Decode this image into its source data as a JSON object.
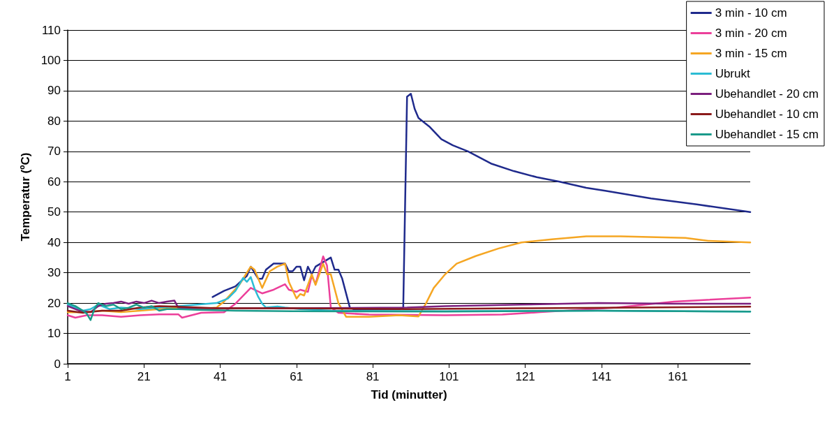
{
  "chart_data": {
    "type": "line",
    "xlabel": "Tid (minutter)",
    "ylabel": "Temperatur (ºC)",
    "xlim": [
      1,
      180
    ],
    "xticks": [
      1,
      21,
      41,
      61,
      81,
      101,
      121,
      141,
      161
    ],
    "ylim": [
      0,
      110
    ],
    "yticks": [
      0,
      10,
      20,
      30,
      40,
      50,
      60,
      70,
      80,
      90,
      100,
      110
    ],
    "grid": "y",
    "legend": "top right",
    "marker": "none",
    "line_style": "solid",
    "series": [
      {
        "name": "3 min - 10 cm",
        "color": "#1f2a8c",
        "x": [
          39,
          42,
          45,
          48,
          49,
          51,
          52,
          53,
          55,
          57,
          58,
          59,
          60,
          61,
          62,
          63,
          64,
          65,
          66,
          68,
          70,
          71,
          72,
          73,
          75,
          76,
          88,
          89,
          90,
          91,
          92,
          93,
          96,
          99,
          102,
          106,
          112,
          118,
          124,
          130,
          137,
          142,
          154,
          166,
          180
        ],
        "values": [
          22,
          24,
          25.5,
          29,
          32,
          28,
          28,
          31,
          33,
          33,
          33,
          30.5,
          30.5,
          32,
          32,
          27.5,
          32,
          29.5,
          32,
          33.5,
          35,
          31,
          31,
          28,
          18.5,
          18,
          18,
          18.5,
          88,
          89,
          84,
          81,
          78,
          74,
          72,
          70,
          66,
          63.5,
          61.5,
          60,
          58,
          57,
          54.5,
          52.5,
          50
        ]
      },
      {
        "name": "3 min - 20 cm",
        "color": "#ec3f9a",
        "x": [
          1,
          3,
          6,
          10,
          15,
          20,
          25,
          30,
          31,
          36,
          42,
          45,
          49,
          52,
          55,
          58,
          59,
          61,
          62,
          64,
          65,
          66,
          68,
          69,
          70,
          72,
          80,
          100,
          115,
          125,
          145,
          160,
          180
        ],
        "values": [
          16,
          15.2,
          16,
          16,
          15.5,
          16,
          16.3,
          16.3,
          15.2,
          16.8,
          17,
          19.8,
          25,
          23.2,
          24.4,
          26.2,
          24.4,
          23.7,
          24.4,
          23.7,
          29,
          26.3,
          35.4,
          32.4,
          18.6,
          16.8,
          16.2,
          16,
          16.2,
          17,
          18.5,
          20.5,
          21.8
        ]
      },
      {
        "name": "3 min - 15 cm",
        "color": "#f5a623",
        "x": [
          1,
          5,
          10,
          15,
          20,
          25,
          30,
          35,
          40,
          42,
          46,
          49,
          50,
          52,
          54,
          56,
          58,
          59,
          61,
          62,
          63,
          65,
          66,
          68,
          69,
          70,
          72,
          74,
          80,
          88,
          93,
          95,
          97,
          100,
          103,
          108,
          114,
          120,
          128,
          137,
          146,
          163,
          169,
          180
        ],
        "values": [
          17,
          17,
          17.5,
          17,
          17.5,
          18,
          18.5,
          18,
          18.5,
          20.5,
          26,
          32,
          31,
          25,
          30.5,
          32,
          33,
          27,
          21.5,
          23,
          22.5,
          29.5,
          26,
          33,
          29.5,
          29.5,
          20,
          15.5,
          15.5,
          16,
          15.6,
          20,
          25,
          29.5,
          33,
          35.5,
          38,
          40,
          41,
          42,
          42,
          41.5,
          40.5,
          40
        ]
      },
      {
        "name": "Ubrukt",
        "color": "#2bbcd4",
        "x": [
          1,
          3,
          5,
          7,
          9,
          12,
          15,
          20,
          25,
          30,
          35,
          40,
          43,
          45,
          47,
          48,
          49,
          50,
          51,
          52,
          53,
          56,
          58,
          62,
          70,
          100,
          140,
          180
        ],
        "values": [
          19.5,
          18.5,
          17.5,
          18,
          19.5,
          18,
          18.5,
          18,
          18.5,
          19,
          19.5,
          20,
          21.5,
          24,
          28.3,
          27,
          28.6,
          24.8,
          22,
          19.8,
          18.5,
          18.9,
          18.5,
          18,
          17.5,
          17.3,
          17.5,
          17.2
        ]
      },
      {
        "name": "Ubehandlet - 20 cm",
        "color": "#7b1f7e",
        "x": [
          1,
          4,
          7,
          9,
          11,
          13,
          15,
          17,
          19,
          21,
          23,
          25,
          27,
          29,
          30,
          33,
          40,
          60,
          90,
          100,
          120,
          140,
          160,
          180
        ],
        "values": [
          19,
          17.5,
          17,
          19,
          19.8,
          20,
          20.5,
          19.8,
          20.5,
          20,
          20.8,
          20,
          20.5,
          20.8,
          18.5,
          18.3,
          18.3,
          18.3,
          18.5,
          19,
          19.5,
          20,
          19.8,
          19.8
        ]
      },
      {
        "name": "Ubehandlet - 10 cm",
        "color": "#8b1a1a",
        "x": [
          1,
          5,
          10,
          15,
          20,
          25,
          30,
          40,
          60,
          90,
          120,
          150,
          180
        ],
        "values": [
          17.5,
          16.8,
          17.5,
          17.5,
          18.5,
          19,
          18.8,
          18.3,
          18.3,
          18,
          18.3,
          18.5,
          18.8
        ]
      },
      {
        "name": "Ubehandlet - 15 cm",
        "color": "#1a9a8a",
        "x": [
          1,
          3,
          5,
          6,
          7,
          8,
          9,
          11,
          13,
          15,
          17,
          19,
          21,
          23,
          25,
          27,
          30,
          35,
          45,
          60,
          100,
          140,
          180
        ],
        "values": [
          20,
          19,
          17.5,
          16.5,
          14.4,
          18,
          20,
          19,
          19.5,
          18,
          18.5,
          19.5,
          18.5,
          19,
          17.5,
          18,
          18,
          17.8,
          17.5,
          17.3,
          17.2,
          17.5,
          17.2
        ]
      }
    ]
  }
}
